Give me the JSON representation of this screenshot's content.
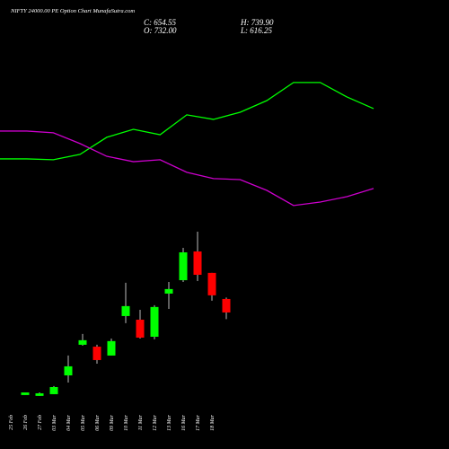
{
  "chart_data": {
    "type": "candlestick",
    "title": "NIFTY 24000.00 PE Option Chart MunafaSutra.com",
    "summary": [
      "C: 654.55",
      "H: 739.90",
      "O: 732.00",
      "L: 616.25"
    ],
    "categories": [
      "25 Feb",
      "26 Feb",
      "27 Feb",
      "03 Mar",
      "04 Mar",
      "05 Mar",
      "06 Mar",
      "09 Mar",
      "10 Mar",
      "11 Mar",
      "12 Mar",
      "13 Mar",
      "16 Mar",
      "17 Mar",
      "18 Mar"
    ],
    "open": [
      180,
      175,
      185,
      293,
      469,
      458,
      407,
      634,
      613,
      515,
      763,
      840,
      1005,
      882,
      732
    ],
    "close": [
      195,
      190,
      226,
      345,
      495,
      381,
      490,
      691,
      510,
      686,
      789,
      1000,
      871,
      753,
      654.55
    ],
    "high": [
      195,
      195,
      232,
      407,
      531,
      469,
      505,
      825,
      670,
      696,
      830,
      1026,
      1119,
      882,
      739.9
    ],
    "low": [
      180,
      175,
      185,
      252,
      464,
      360,
      407,
      593,
      505,
      500,
      675,
      830,
      835,
      722,
      616.25
    ],
    "up_color": "#00ff00",
    "down_color": "#ff0000",
    "ylim": [
      -130,
      2450
    ],
    "lines": [
      {
        "color": "#00ff00",
        "values": [
          1537,
          1537,
          1532,
          1563,
          1661,
          1707,
          1676,
          1790,
          1764,
          1805,
          1872,
          1976,
          1976,
          1893,
          1826
        ]
      },
      {
        "color": "#cc00cc",
        "values": [
          1697,
          1697,
          1687,
          1625,
          1552,
          1521,
          1532,
          1460,
          1424,
          1418,
          1356,
          1269,
          1289,
          1320,
          1367
        ]
      }
    ]
  }
}
